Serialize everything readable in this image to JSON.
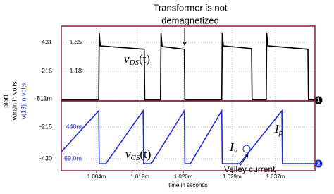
{
  "chart_data": [
    {
      "type": "line",
      "title_lines": [
        "Transformer is not",
        "demagnetized"
      ],
      "plot_name": "plot1",
      "ylabel": "vdrain in volts",
      "xlim": [
        0.9975,
        1.0443
      ],
      "ylim": [
        -4,
        552
      ],
      "yticks": [
        431,
        216,
        {
          "value": 0.811,
          "label": "811m"
        }
      ],
      "y2lim": [
        0.802,
        1.758
      ],
      "y2ticks": [
        1.55,
        1.18
      ],
      "frame_color": "#8b1a4a",
      "grid": true,
      "annotations": [
        {
          "text": "v",
          "sub": "DS",
          "tail": "(t)"
        }
      ],
      "series": [
        {
          "name": "1",
          "color": "#000000",
          "x": [
            0.9975,
            1.0044,
            1.0045,
            1.0047,
            1.0128,
            1.0129,
            1.0158,
            1.0159,
            1.0161,
            1.0202,
            1.0203,
            1.0271,
            1.0272,
            1.0274,
            1.0326,
            1.0327,
            1.0353,
            1.0354,
            1.0356,
            1.043,
            1.0431,
            1.0443
          ],
          "values": [
            2,
            2,
            500,
            405,
            380,
            2,
            2,
            500,
            400,
            380,
            2,
            2,
            500,
            405,
            385,
            2,
            2,
            500,
            405,
            380,
            2,
            2
          ]
        }
      ]
    },
    {
      "type": "line",
      "ylabel": "v(13) in volts",
      "xlabel": "time in seconds",
      "xlim": [
        0.9975,
        1.0443
      ],
      "xticks": [
        {
          "value": 1.004,
          "label": "1.004m"
        },
        {
          "value": 1.012,
          "label": "1.012m"
        },
        {
          "value": 1.02,
          "label": "1.020m"
        },
        {
          "value": 1.029,
          "label": "1.029m"
        },
        {
          "value": 1.037,
          "label": "1.037m"
        }
      ],
      "ylim": [
        -511,
        -38
      ],
      "yticks": [
        -215,
        -430
      ],
      "y2lim": [
        -0.071,
        0.745
      ],
      "y2ticks": [
        {
          "value": 0.44,
          "label": "440m"
        },
        {
          "value": 0.069,
          "label": "69.0m"
        }
      ],
      "frame_color": "#8b1a4a",
      "grid": true,
      "annotations": [
        {
          "text": "v",
          "sub": "CS",
          "tail": "(t)"
        },
        {
          "text": "I",
          "sub": "p",
          "tail": ""
        },
        {
          "text": "I",
          "sub": "v",
          "tail": ""
        },
        {
          "text": "Valley current"
        }
      ],
      "series": [
        {
          "name": "2",
          "color": "#1f2fd0",
          "axis": "y2",
          "x": [
            0.9975,
            1.0044,
            1.0045,
            1.0057,
            1.0126,
            1.0127,
            1.0141,
            1.0202,
            1.0203,
            1.0213,
            1.0271,
            1.0272,
            1.0304,
            1.0382,
            1.0383,
            1.0443
          ],
          "values": [
            0.15,
            0.63,
            0.011,
            0.011,
            0.63,
            0.011,
            0.011,
            0.63,
            0.011,
            0.011,
            0.63,
            0.011,
            0.011,
            0.63,
            0.011,
            0.011
          ]
        }
      ]
    }
  ]
}
